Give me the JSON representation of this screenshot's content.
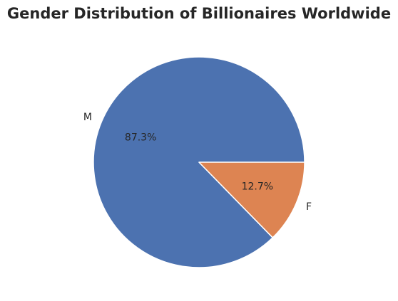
{
  "chart_data": {
    "type": "pie",
    "title": "Gender Distribution of Billionaires Worldwide",
    "categories": [
      "M",
      "F"
    ],
    "values": [
      87.3,
      12.7
    ],
    "value_labels": [
      "87.3%",
      "12.7%"
    ],
    "colors": [
      "#4c72b0",
      "#dd8452"
    ],
    "start_angle_deg": 0,
    "direction": "counterclockwise",
    "legend": "none"
  }
}
